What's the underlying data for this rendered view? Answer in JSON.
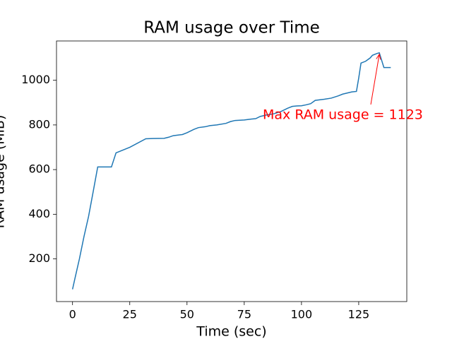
{
  "chart_data": {
    "type": "line",
    "title": "RAM usage over Time",
    "x_label": "Time (sec)",
    "y_label": "RAM usage (MiB)",
    "annotation": "Max RAM usage = 1123",
    "annotation_color": "#ff0000",
    "x": [
      0,
      1,
      3,
      5,
      7,
      9,
      11,
      17,
      19,
      25,
      32,
      35,
      40,
      42,
      44,
      48,
      50,
      53,
      55,
      58,
      60,
      63,
      67,
      69,
      71,
      75,
      78,
      80,
      82,
      85,
      88,
      91,
      94,
      96,
      98,
      100,
      102,
      104,
      106,
      110,
      113,
      116,
      118,
      122,
      124,
      125,
      126,
      128,
      130,
      131,
      133,
      134,
      136,
      139
    ],
    "series": [
      {
        "name": "RAM usage",
        "color": "#1f77b4",
        "values": [
          64,
          110,
          200,
          300,
          390,
          500,
          612,
          612,
          675,
          700,
          738,
          739,
          740,
          745,
          752,
          757,
          765,
          780,
          788,
          792,
          797,
          800,
          807,
          815,
          820,
          822,
          826,
          828,
          838,
          845,
          850,
          860,
          875,
          883,
          885,
          886,
          890,
          895,
          910,
          915,
          920,
          930,
          938,
          948,
          950,
          1010,
          1077,
          1085,
          1100,
          1112,
          1120,
          1123,
          1057,
          1057
        ]
      }
    ],
    "xlim": [
      -7,
      146
    ],
    "ylim": [
      9,
      1176
    ],
    "xticks": [
      0,
      25,
      50,
      75,
      100,
      125
    ],
    "yticks": [
      200,
      400,
      600,
      800,
      1000
    ]
  }
}
